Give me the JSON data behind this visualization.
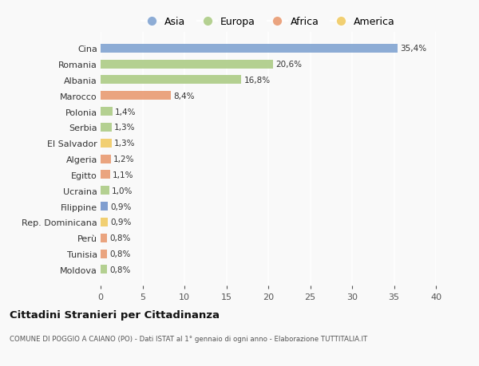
{
  "categories": [
    "Moldova",
    "Tunisia",
    "Perù",
    "Rep. Dominicana",
    "Filippine",
    "Ucraina",
    "Egitto",
    "Algeria",
    "El Salvador",
    "Serbia",
    "Polonia",
    "Marocco",
    "Albania",
    "Romania",
    "Cina"
  ],
  "values": [
    0.8,
    0.8,
    0.8,
    0.9,
    0.9,
    1.0,
    1.1,
    1.2,
    1.3,
    1.3,
    1.4,
    8.4,
    16.8,
    20.6,
    35.4
  ],
  "labels": [
    "0,8%",
    "0,8%",
    "0,8%",
    "0,9%",
    "0,9%",
    "1,0%",
    "1,1%",
    "1,2%",
    "1,3%",
    "1,3%",
    "1,4%",
    "8,4%",
    "16,8%",
    "20,6%",
    "35,4%"
  ],
  "colors": [
    "#a8c97f",
    "#e8956a",
    "#e8956a",
    "#f0c85a",
    "#6b8ec8",
    "#a8c97f",
    "#e8956a",
    "#e8956a",
    "#f0c85a",
    "#a8c97f",
    "#a8c97f",
    "#e8956a",
    "#a8c97f",
    "#a8c97f",
    "#7a9fcf"
  ],
  "legend_labels": [
    "Asia",
    "Europa",
    "Africa",
    "America"
  ],
  "legend_colors": [
    "#7a9fcf",
    "#a8c97f",
    "#e8956a",
    "#f0c85a"
  ],
  "title": "Cittadini Stranieri per Cittadinanza",
  "subtitle": "COMUNE DI POGGIO A CAIANO (PO) - Dati ISTAT al 1° gennaio di ogni anno - Elaborazione TUTTITALIA.IT",
  "xlim": [
    0,
    40
  ],
  "xticks": [
    0,
    5,
    10,
    15,
    20,
    25,
    30,
    35,
    40
  ],
  "bar_height": 0.55,
  "background_color": "#f9f9f9",
  "grid_color": "#ffffff"
}
